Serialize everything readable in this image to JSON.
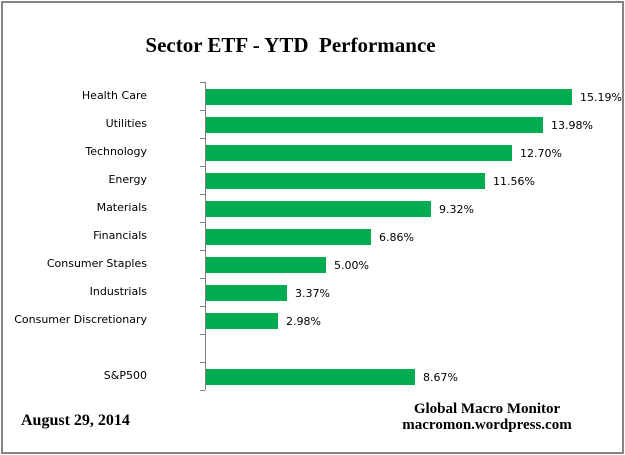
{
  "title": "Sector ETF - YTD  Performance",
  "footer": {
    "date": "August 29, 2014",
    "credit_line1": "Global Macro Monitor",
    "credit_line2": "macromon.wordpress.com"
  },
  "colors": {
    "bar_green": "#00AC50",
    "axis_gray": "#808080",
    "frame_gray": "#848484",
    "text_black": "#000000"
  },
  "chart_data": {
    "type": "bar",
    "orientation": "horizontal",
    "title": "Sector ETF - YTD  Performance",
    "xlabel": "",
    "ylabel": "",
    "xlim": [
      0,
      16.6
    ],
    "grid": false,
    "legend": "none",
    "value_label_format": "percent, two decimals, shown at bar end",
    "rows": [
      {
        "label": "Health Care",
        "value": 15.19,
        "display": "15.19%"
      },
      {
        "label": "Utilities",
        "value": 13.98,
        "display": "13.98%"
      },
      {
        "label": "Technology",
        "value": 12.7,
        "display": "12.70%"
      },
      {
        "label": "Energy",
        "value": 11.56,
        "display": "11.56%"
      },
      {
        "label": "Materials",
        "value": 9.32,
        "display": "9.32%"
      },
      {
        "label": "Financials",
        "value": 6.86,
        "display": "6.86%"
      },
      {
        "label": "Consumer Staples",
        "value": 5.0,
        "display": "5.00%"
      },
      {
        "label": "Industrials",
        "value": 3.37,
        "display": "3.37%"
      },
      {
        "label": "Consumer Discretionary",
        "value": 2.98,
        "display": "2.98%"
      },
      {
        "label": "",
        "value": null,
        "display": ""
      },
      {
        "label": "S&P500",
        "value": 8.67,
        "display": "8.67%"
      }
    ]
  }
}
